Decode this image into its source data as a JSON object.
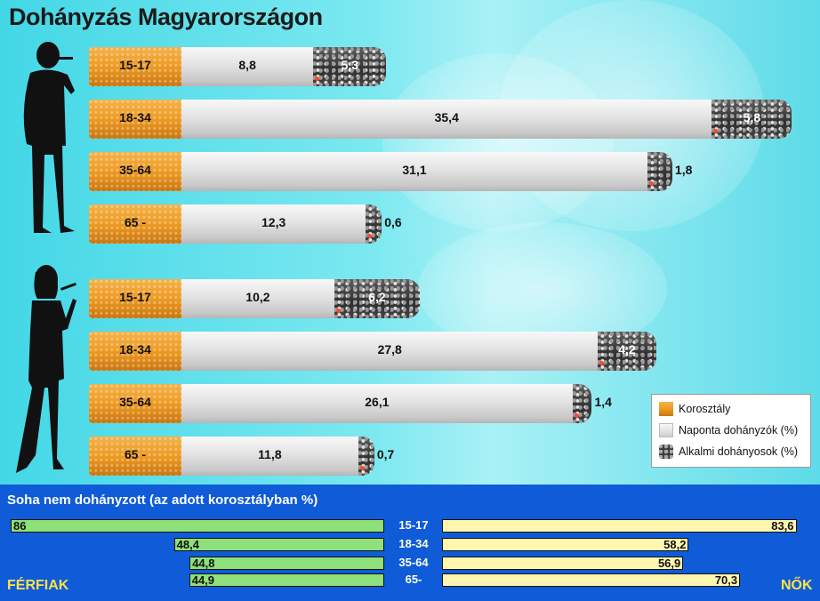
{
  "title": "Dohányzás Magyarországon",
  "chart_data": [
    {
      "type": "bar",
      "stacked": true,
      "orientation": "horizontal",
      "groups": [
        {
          "rows": [
            {
              "age": "15-17",
              "daily": 8.8,
              "occasional": 5.3,
              "daily_label": "8,8",
              "occasional_label": "5,3"
            },
            {
              "age": "18-34",
              "daily": 35.4,
              "occasional": 5.8,
              "daily_label": "35,4",
              "occasional_label": "5,8"
            },
            {
              "age": "35-64",
              "daily": 31.1,
              "occasional": 1.8,
              "daily_label": "31,1",
              "occasional_label": "1,8"
            },
            {
              "age": "65 -",
              "daily": 12.3,
              "occasional": 0.6,
              "daily_label": "12,3",
              "occasional_label": "0,6"
            }
          ]
        },
        {
          "rows": [
            {
              "age": "15-17",
              "daily": 10.2,
              "occasional": 6.2,
              "daily_label": "10,2",
              "occasional_label": "6,2"
            },
            {
              "age": "18-34",
              "daily": 27.8,
              "occasional": 4.2,
              "daily_label": "27,8",
              "occasional_label": "4,2"
            },
            {
              "age": "35-64",
              "daily": 26.1,
              "occasional": 1.4,
              "daily_label": "26,1",
              "occasional_label": "1,4"
            },
            {
              "age": "65 -",
              "daily": 11.8,
              "occasional": 0.7,
              "daily_label": "11,8",
              "occasional_label": "0,7"
            }
          ]
        }
      ],
      "legend": [
        {
          "label": "Korosztály",
          "color": "#ee9a22"
        },
        {
          "label": "Naponta dohányzók (%)",
          "color": "#e6e6e6"
        },
        {
          "label": "Alkalmi dohányosok (%)",
          "color": "#3a3a3a"
        }
      ],
      "legend_position": "bottom-right"
    },
    {
      "type": "bar",
      "orientation": "horizontal",
      "title": "Soha nem dohányzott (az adott korosztályban %)",
      "categories": [
        "15-17",
        "18-34",
        "35-64",
        "65-"
      ],
      "series": [
        {
          "name": "FÉRFIAK",
          "values": [
            86,
            48.4,
            44.8,
            44.9
          ],
          "labels": [
            "86",
            "48,4",
            "44,8",
            "44,9"
          ],
          "color": "#8ee07a"
        },
        {
          "name": "NŐK",
          "values": [
            83.6,
            58.2,
            56.9,
            70.3
          ],
          "labels": [
            "83,6",
            "58,2",
            "56,9",
            "70,3"
          ],
          "color": "#fff6b0"
        }
      ],
      "xlim": [
        0,
        86
      ]
    }
  ]
}
